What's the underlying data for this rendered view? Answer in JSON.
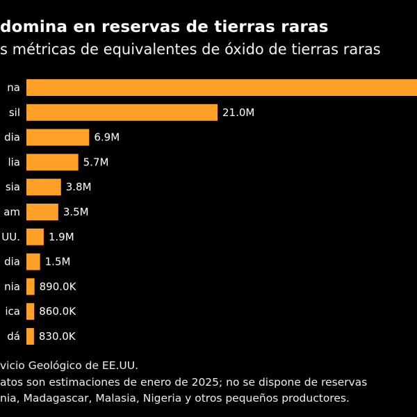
{
  "title": "domina en reservas de tierras raras",
  "subtitle": "s métricas de equivalentes de óxido de tierras raras",
  "footer": {
    "source": "vicio Geológico de EE.UU.",
    "note_line1": "atos son estimaciones de enero de 2025; no se dispone de reservas",
    "note_line2": "nia, Madagascar, Malasia, Nigeria y otros pequeños productores."
  },
  "colors": {
    "bar": "#ffa126",
    "background": "#000000",
    "text": "#ffffff"
  },
  "chart_data": {
    "type": "bar",
    "orientation": "horizontal",
    "categories": [
      "na",
      "sil",
      "dia",
      "lia",
      "sia",
      "am",
      "UU.",
      "dia",
      "nia",
      "ica",
      "dá"
    ],
    "values": [
      44000000,
      21000000,
      6900000,
      5700000,
      3800000,
      3500000,
      1900000,
      1500000,
      890000,
      860000,
      830000
    ],
    "data_labels": [
      null,
      "21.0M",
      "6.9M",
      "5.7M",
      "3.8M",
      "3.5M",
      "1.9M",
      "1.5M",
      "890.0K",
      "860.0K",
      "830.0K"
    ],
    "grid": false,
    "legend": "none"
  }
}
